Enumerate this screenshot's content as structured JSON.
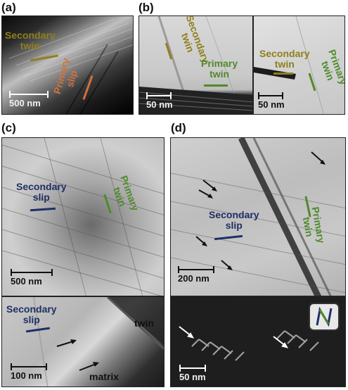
{
  "figure": {
    "panel_a": {
      "label": "(a)",
      "secondary_twin": "Secondary\ntwin",
      "primary_slip": "Primary\nslip",
      "scale": "500 nm"
    },
    "panel_b": {
      "label": "(b)",
      "left": {
        "secondary_twin": "Secondary\ntwin",
        "primary_twin": "Primary\ntwin",
        "scale": "50 nm"
      },
      "right": {
        "secondary_twin": "Secondary\ntwin",
        "primary_twin": "Primary\ntwin",
        "scale": "50 nm"
      }
    },
    "panel_c": {
      "label": "(c)",
      "top": {
        "secondary_slip": "Secondary\nslip",
        "primary_twin": "Primary\ntwin",
        "scale": "500 nm"
      },
      "bottom": {
        "secondary_slip": "Secondary\nslip",
        "twin": "twin",
        "matrix": "matrix",
        "scale": "100 nm"
      }
    },
    "panel_d": {
      "label": "(d)",
      "top": {
        "secondary_slip": "Secondary\nslip",
        "primary_twin": "Primary\ntwin",
        "scale": "200 nm"
      },
      "bottom": {
        "scale": "50 nm",
        "inset_icon": "zigzag-twin-icon"
      }
    },
    "colors": {
      "secondary_twin": "#8f7f1a",
      "primary_twin": "#4f8a2a",
      "secondary_slip": "#1f2f66",
      "primary_slip": "#d0723c"
    }
  }
}
